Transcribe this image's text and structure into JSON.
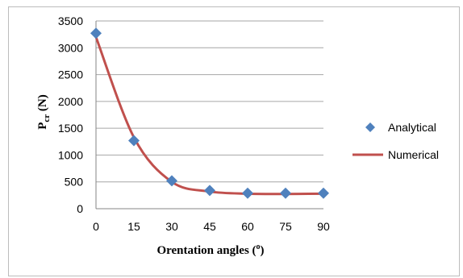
{
  "chart_data": {
    "type": "scatter",
    "title": "",
    "xlabel": {
      "main": "Orentation angles (",
      "sup": "o",
      "close": ")"
    },
    "ylabel": {
      "main": "P",
      "sub": "cr",
      "rest": " (N)"
    },
    "x_ticks": [
      "0",
      "15",
      "30",
      "45",
      "60",
      "75",
      "90"
    ],
    "y_ticks": [
      "0",
      "500",
      "1000",
      "1500",
      "2000",
      "2500",
      "3000",
      "3500"
    ],
    "xlim": [
      0,
      90
    ],
    "ylim": [
      0,
      3500
    ],
    "grid": "horizontal",
    "legend_position": "right",
    "series": [
      {
        "name": "Analytical",
        "style": "markers",
        "marker": "diamond",
        "color": "#4f81bd",
        "x": [
          0,
          15,
          30,
          45,
          60,
          75,
          90
        ],
        "y": [
          3270,
          1270,
          520,
          340,
          290,
          290,
          290
        ]
      },
      {
        "name": "Numerical",
        "style": "line",
        "color": "#c0504d",
        "x": [
          0,
          15,
          30,
          45,
          60,
          75,
          90
        ],
        "y": [
          3200,
          1330,
          500,
          320,
          280,
          275,
          280
        ]
      }
    ]
  }
}
